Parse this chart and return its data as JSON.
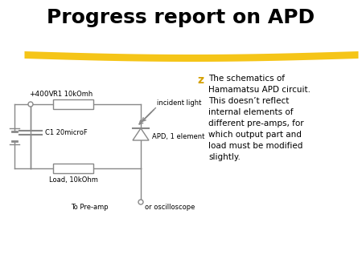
{
  "title": "Progress report on APD",
  "title_fontsize": 18,
  "title_fontweight": "bold",
  "bg_color": "#ffffff",
  "highlight_color": "#F5C518",
  "bullet_color": "#D4A000",
  "bullet_char": "z",
  "text_color": "#000000",
  "circuit_color": "#888888",
  "bullet_text_lines": [
    "The schematics of",
    "Hamamatsu APD circuit.",
    "This doesn’t reflect",
    "internal elements of",
    "different pre-amps, for",
    "which output part and",
    "load must be modified",
    "slightly."
  ],
  "labels": {
    "voltage": "+400V",
    "r1": "R1 10kOmh",
    "c1": "C1 20microF",
    "load": "Load, 10kOhm",
    "apd": "APD, 1 element",
    "light": "incident light",
    "preamp": "To Pre-amp",
    "osc": "or oscilloscope"
  }
}
